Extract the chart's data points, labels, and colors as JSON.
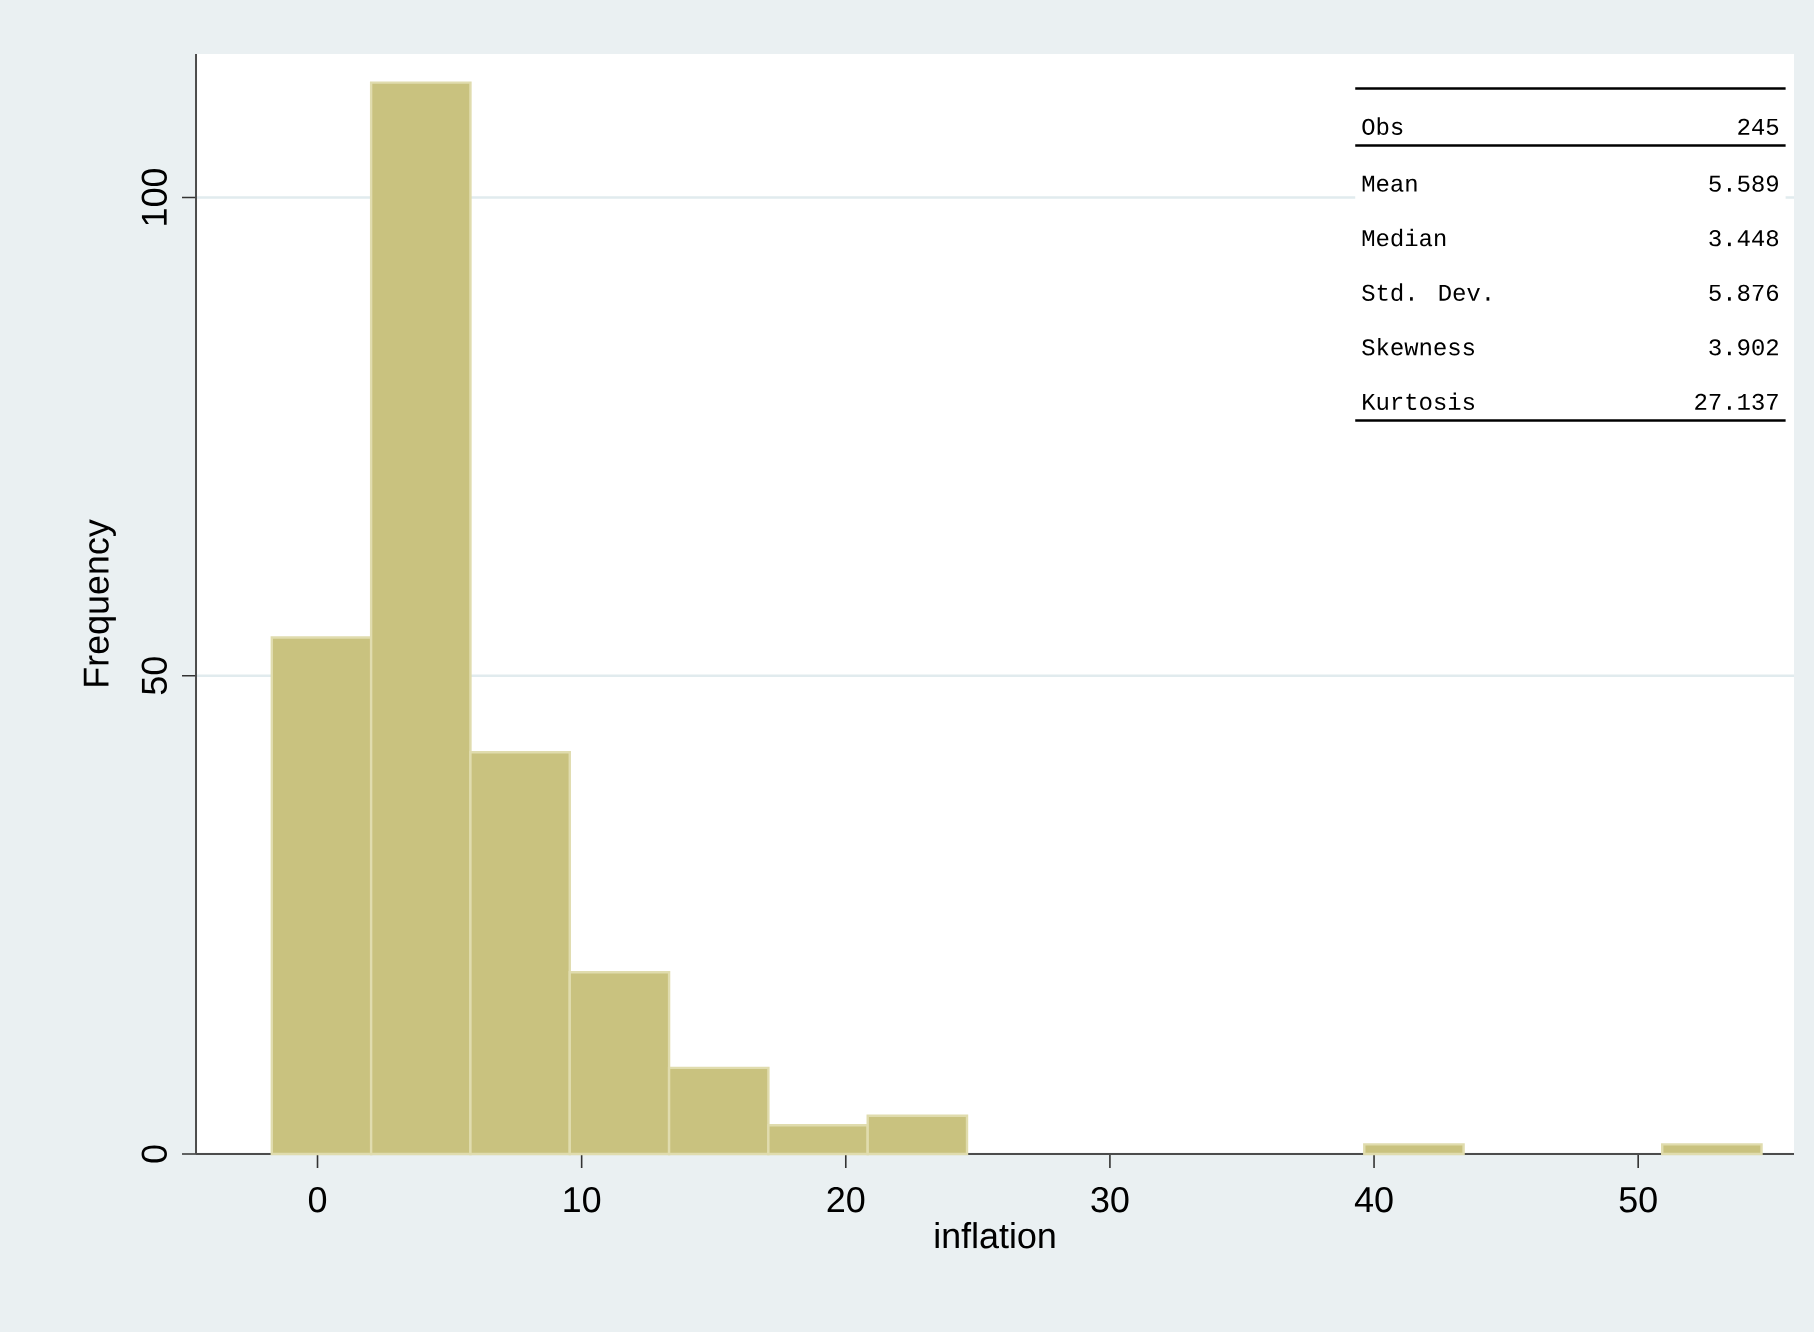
{
  "chart_data": {
    "type": "histogram",
    "xlabel": "inflation",
    "ylabel": "Frequency",
    "bins": [
      -1.73,
      2.03,
      5.79,
      9.55,
      13.31,
      17.07,
      20.83,
      24.59,
      28.35,
      32.11,
      35.87,
      39.63,
      43.39,
      47.15,
      50.91,
      54.67
    ],
    "values": [
      54,
      112,
      42,
      19,
      9,
      3,
      4,
      0,
      0,
      0,
      0,
      1,
      0,
      0,
      1
    ],
    "color": "#c9c27f",
    "xlim": [
      -4.6,
      55.9
    ],
    "ylim": [
      0,
      115
    ],
    "xticks": [
      0,
      10,
      20,
      30,
      40,
      50
    ],
    "yticks": [
      0,
      50,
      100
    ],
    "grid": "y",
    "annotations": [
      "Obs",
      "245",
      "Mean",
      "5.589",
      "Median",
      "3.448",
      "Std. Dev.",
      "5.876",
      "Skewness",
      "3.902",
      "Kurtosis",
      "27.137"
    ]
  }
}
